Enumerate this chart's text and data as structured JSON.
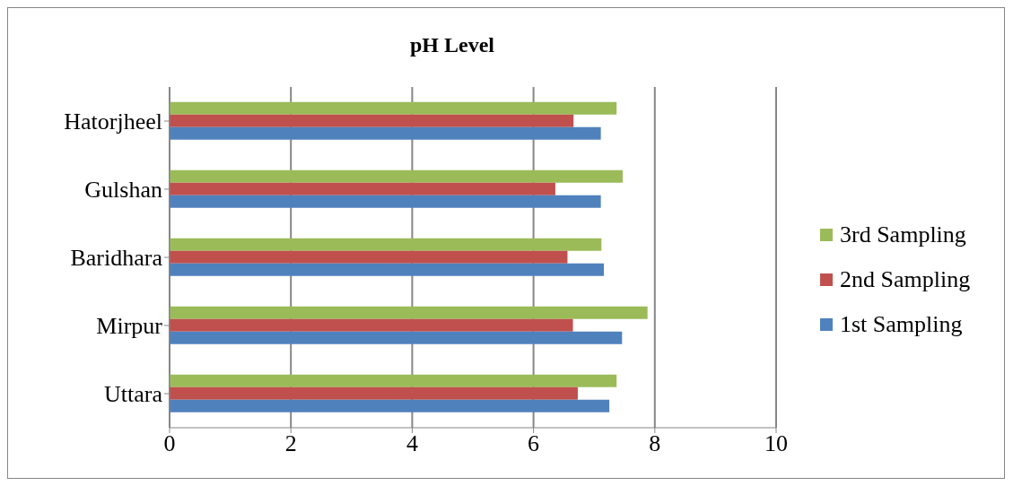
{
  "chart_data": {
    "type": "bar",
    "orientation": "horizontal",
    "title": "pH Level",
    "categories": [
      "Hatorjheel",
      "Gulshan",
      "Baridhara",
      "Mirpur",
      "Uttara"
    ],
    "series": [
      {
        "name": "3rd Sampling",
        "color": "#9bbb59",
        "values": [
          7.37,
          7.47,
          7.12,
          7.88,
          7.37
        ]
      },
      {
        "name": "2nd Sampling",
        "color": "#c0504d",
        "values": [
          6.66,
          6.36,
          6.56,
          6.65,
          6.73
        ]
      },
      {
        "name": "1st Sampling",
        "color": "#4f81bd",
        "values": [
          7.11,
          7.11,
          7.16,
          7.46,
          7.25
        ]
      }
    ],
    "xlim": [
      0,
      10
    ],
    "xticks": [
      0,
      2,
      4,
      6,
      8,
      10
    ],
    "grid": "x",
    "legend": "right"
  }
}
